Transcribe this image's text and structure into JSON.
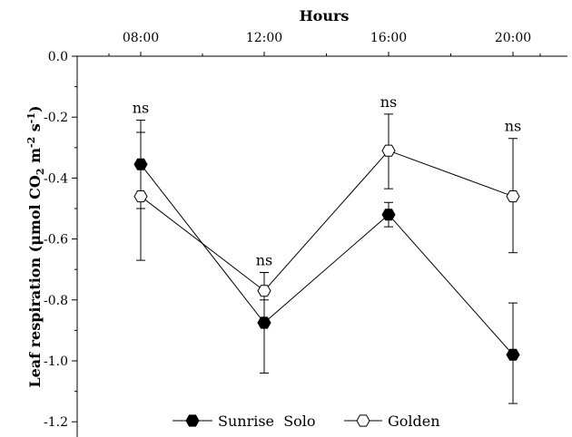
{
  "chart_data": {
    "type": "line",
    "xlabel": "Hours",
    "xaxis_position": "top",
    "x_categories": [
      "08:00",
      "12:00",
      "16:00",
      "20:00"
    ],
    "ylabel_main": "Leaf respiration (μmol CO",
    "ylabel_sub": "2",
    "ylabel_mid": " m",
    "ylabel_sup1": "-2",
    "ylabel_mid2": " s",
    "ylabel_sup2": "-1",
    "ylabel_end": ")",
    "ylim": [
      -1.25,
      0.0
    ],
    "yticks": [
      "0.0",
      "-0.2",
      "-0.4",
      "-0.6",
      "-0.8",
      "-1.0",
      "-1.2"
    ],
    "ytick_values": [
      0.0,
      -0.2,
      -0.4,
      -0.6,
      -0.8,
      -1.0,
      -1.2
    ],
    "annotations": [
      "ns",
      "ns",
      "ns",
      "ns"
    ],
    "series": [
      {
        "name": "Sunrise  Solo",
        "marker": "filled-hexagon",
        "color": "#000000",
        "values": [
          -0.355,
          -0.875,
          -0.52,
          -0.98
        ],
        "err_upper": [
          -0.25,
          -0.71,
          -0.48,
          -0.81
        ],
        "err_lower": [
          -0.5,
          -1.04,
          -0.56,
          -1.14
        ]
      },
      {
        "name": "Golden",
        "marker": "open-hexagon",
        "color": "#000000",
        "values": [
          -0.46,
          -0.77,
          -0.31,
          -0.46
        ],
        "err_upper": [
          -0.21,
          -0.71,
          -0.19,
          -0.27
        ],
        "err_lower": [
          -0.67,
          -0.8,
          -0.435,
          -0.645
        ]
      }
    ],
    "legend_position": "bottom-center"
  }
}
